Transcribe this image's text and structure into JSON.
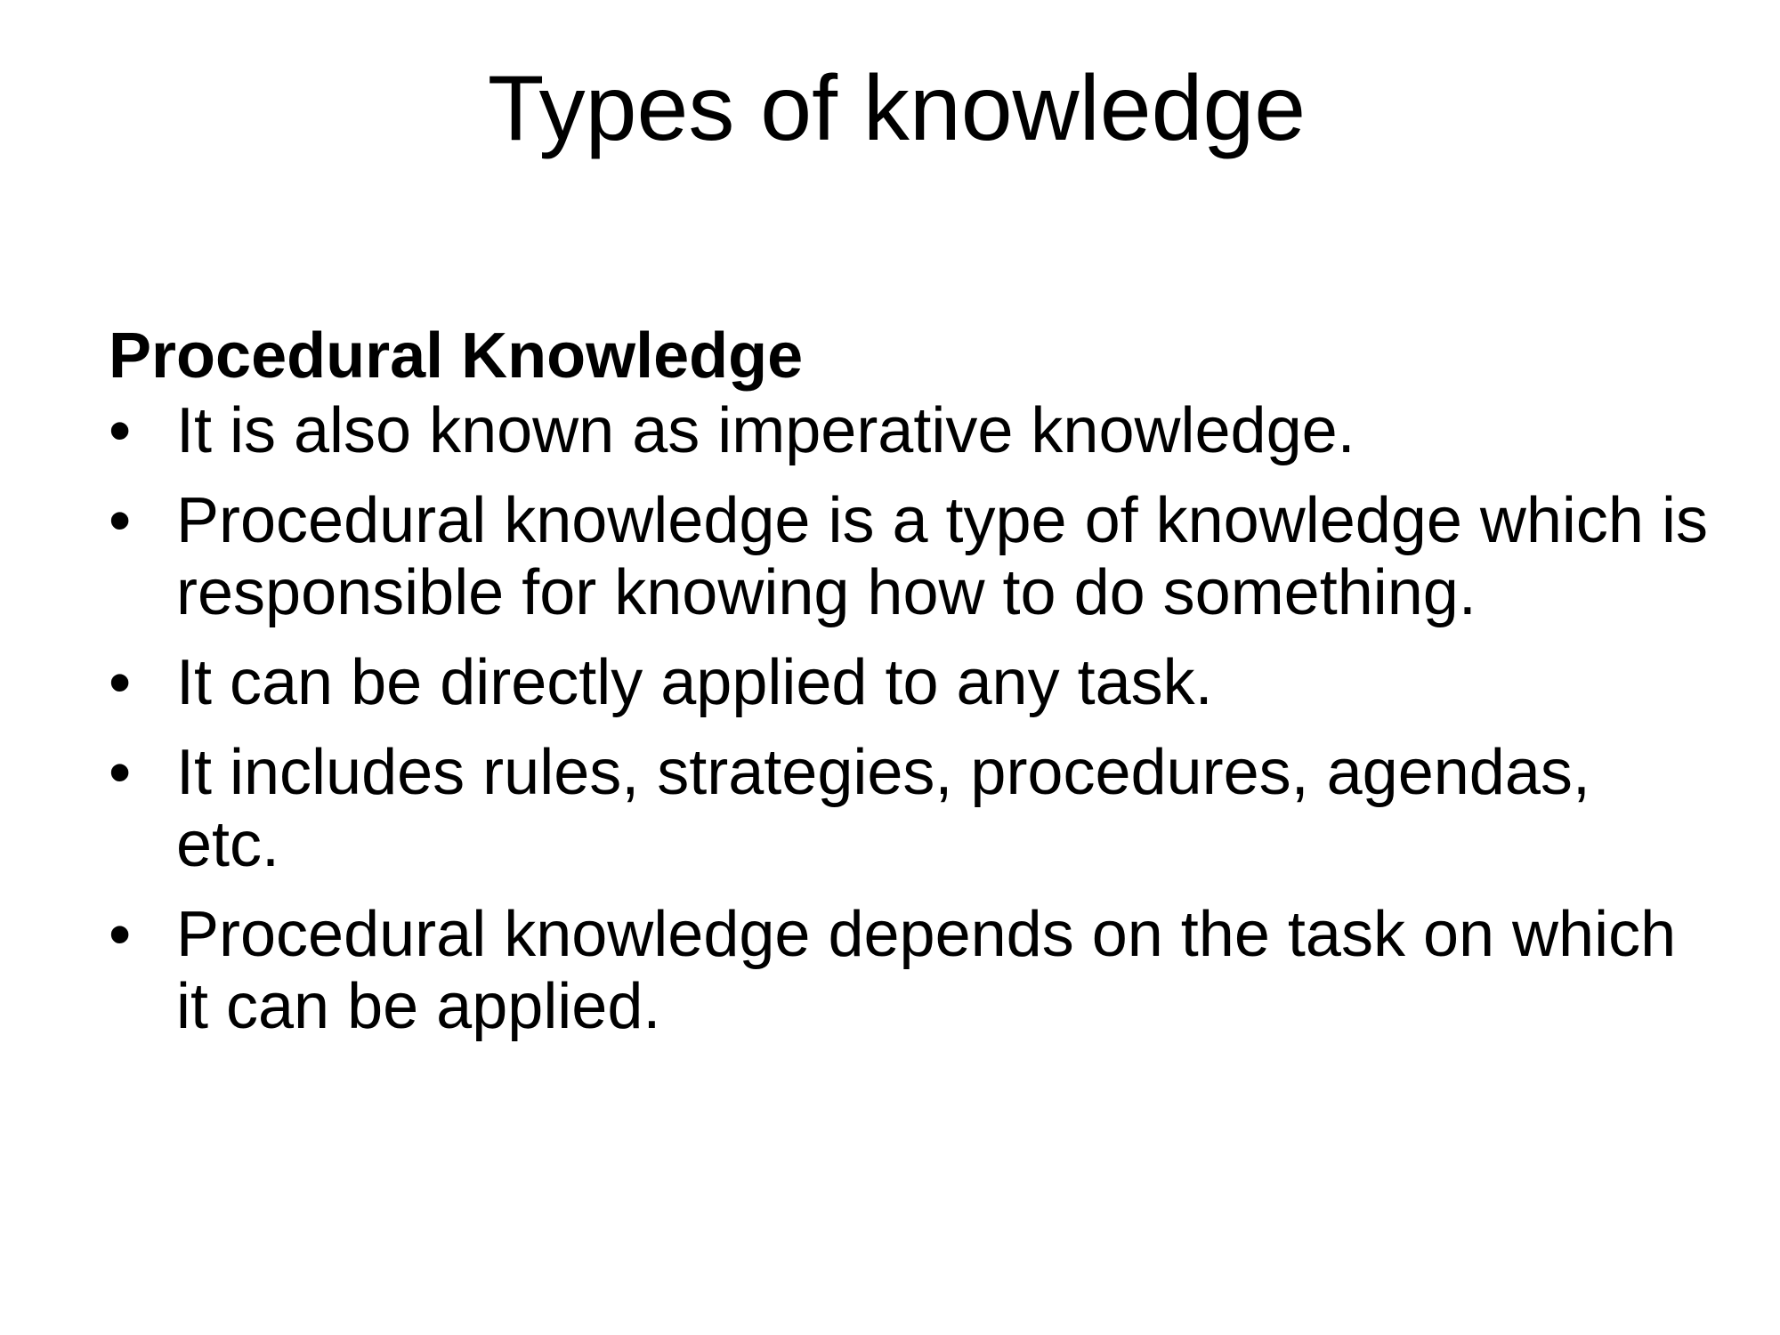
{
  "slide": {
    "title": "Types of knowledge",
    "section_heading": "Procedural Knowledge",
    "bullet_glyph": "•",
    "bullets": [
      {
        "text": "It is also known as imperative knowledge."
      },
      {
        "text": "Procedural knowledge is a type of knowledge which is responsible for knowing how to do something."
      },
      {
        "text": "It can be directly applied to any task."
      },
      {
        "text": "It includes rules, strategies, procedures, agendas, etc."
      },
      {
        "text": "Procedural knowledge depends on the task on which it can be applied."
      }
    ]
  }
}
